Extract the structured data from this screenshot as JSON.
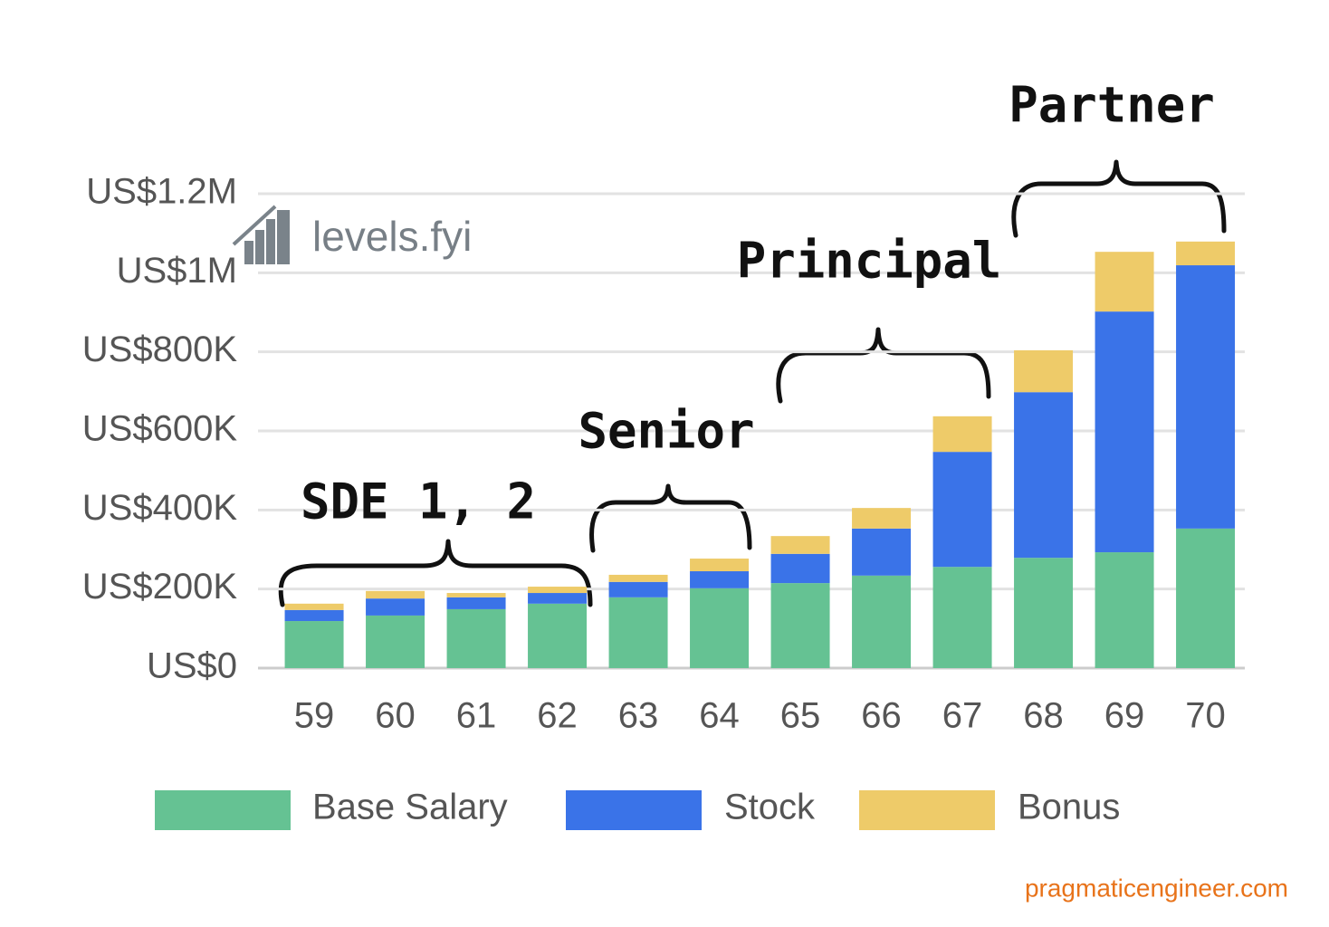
{
  "chart_data": {
    "type": "stacked_bar",
    "categories": [
      "59",
      "60",
      "61",
      "62",
      "63",
      "64",
      "65",
      "66",
      "67",
      "68",
      "69",
      "70"
    ],
    "series": [
      {
        "name": "Base Salary",
        "color": "#65c293",
        "values": [
          119000,
          133000,
          149000,
          163000,
          179000,
          202000,
          215000,
          234000,
          256000,
          279000,
          293000,
          353000
        ]
      },
      {
        "name": "Stock",
        "color": "#3a73e8",
        "values": [
          28000,
          43000,
          30000,
          27000,
          39000,
          43000,
          74000,
          119000,
          291000,
          419000,
          609000,
          666000
        ]
      },
      {
        "name": "Bonus",
        "color": "#eecb69",
        "values": [
          16000,
          19000,
          11000,
          16000,
          18000,
          32000,
          45000,
          52000,
          90000,
          106000,
          151000,
          60000
        ]
      }
    ],
    "ylim": [
      0,
      1200000
    ],
    "yticks": [
      {
        "value": 0,
        "label": "US$0"
      },
      {
        "value": 200000,
        "label": "US$200K"
      },
      {
        "value": 400000,
        "label": "US$400K"
      },
      {
        "value": 600000,
        "label": "US$600K"
      },
      {
        "value": 800000,
        "label": "US$800K"
      },
      {
        "value": 1000000,
        "label": "US$1M"
      },
      {
        "value": 1200000,
        "label": "US$1.2M"
      }
    ],
    "grid": true,
    "legend": "bottom",
    "annotations": [
      "SDE 1, 2",
      "Senior",
      "Principal",
      "Partner"
    ],
    "watermark": "levels.fyi",
    "source": "pragmaticengineer.com"
  }
}
